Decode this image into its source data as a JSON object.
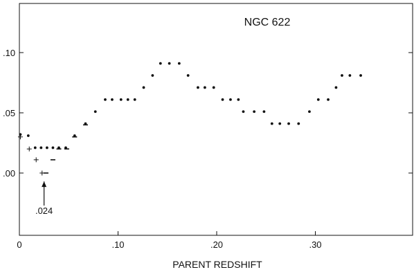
{
  "chart_data": {
    "type": "scatter",
    "title": "NGC 622",
    "xlabel": "PARENT REDSHIFT",
    "ylabel": "",
    "xlim": [
      0,
      0.4
    ],
    "ylim": [
      -0.05,
      0.14
    ],
    "x_ticks": [
      {
        "value": 0.0,
        "label": "0"
      },
      {
        "value": 0.1,
        "label": ".10"
      },
      {
        "value": 0.2,
        "label": ".20"
      },
      {
        "value": 0.3,
        "label": ".30"
      }
    ],
    "y_ticks": [
      {
        "value": 0.0,
        "label": ".00"
      },
      {
        "value": 0.05,
        "label": ".05"
      },
      {
        "value": 0.1,
        "label": ".10"
      }
    ],
    "grid": false,
    "series": [
      {
        "marker": "dot",
        "points": [
          [
            0.001,
            0.032
          ],
          [
            0.009,
            0.031
          ],
          [
            0.016,
            0.021
          ],
          [
            0.022,
            0.021
          ],
          [
            0.028,
            0.021
          ],
          [
            0.034,
            0.021
          ],
          [
            0.04,
            0.021
          ],
          [
            0.047,
            0.021
          ],
          [
            0.056,
            0.031
          ],
          [
            0.067,
            0.041
          ],
          [
            0.077,
            0.051
          ],
          [
            0.087,
            0.061
          ],
          [
            0.094,
            0.061
          ],
          [
            0.103,
            0.061
          ],
          [
            0.11,
            0.061
          ],
          [
            0.117,
            0.061
          ],
          [
            0.126,
            0.071
          ],
          [
            0.135,
            0.081
          ],
          [
            0.143,
            0.091
          ],
          [
            0.152,
            0.091
          ],
          [
            0.162,
            0.091
          ],
          [
            0.171,
            0.081
          ],
          [
            0.181,
            0.071
          ],
          [
            0.188,
            0.071
          ],
          [
            0.197,
            0.071
          ],
          [
            0.206,
            0.061
          ],
          [
            0.214,
            0.061
          ],
          [
            0.222,
            0.061
          ],
          [
            0.227,
            0.051
          ],
          [
            0.238,
            0.051
          ],
          [
            0.248,
            0.051
          ],
          [
            0.256,
            0.041
          ],
          [
            0.264,
            0.041
          ],
          [
            0.273,
            0.041
          ],
          [
            0.283,
            0.041
          ],
          [
            0.294,
            0.051
          ],
          [
            0.303,
            0.061
          ],
          [
            0.313,
            0.061
          ],
          [
            0.321,
            0.071
          ],
          [
            0.327,
            0.081
          ],
          [
            0.335,
            0.081
          ],
          [
            0.346,
            0.081
          ]
        ]
      },
      {
        "marker": "plus",
        "points": [
          [
            0.001,
            0.03
          ],
          [
            0.01,
            0.02
          ],
          [
            0.017,
            0.011
          ],
          [
            0.023,
            0.0
          ]
        ]
      },
      {
        "marker": "dash",
        "points": [
          [
            0.027,
            0.0
          ],
          [
            0.034,
            0.011
          ],
          [
            0.04,
            0.02
          ],
          [
            0.048,
            0.02
          ],
          [
            0.056,
            0.03
          ],
          [
            0.067,
            0.04
          ]
        ]
      }
    ],
    "annotations": [
      {
        "text": ".024",
        "arrow_x": 0.025,
        "arrow_tip_y": -0.007,
        "arrow_tail_y": -0.027,
        "label_y": -0.034
      }
    ]
  }
}
